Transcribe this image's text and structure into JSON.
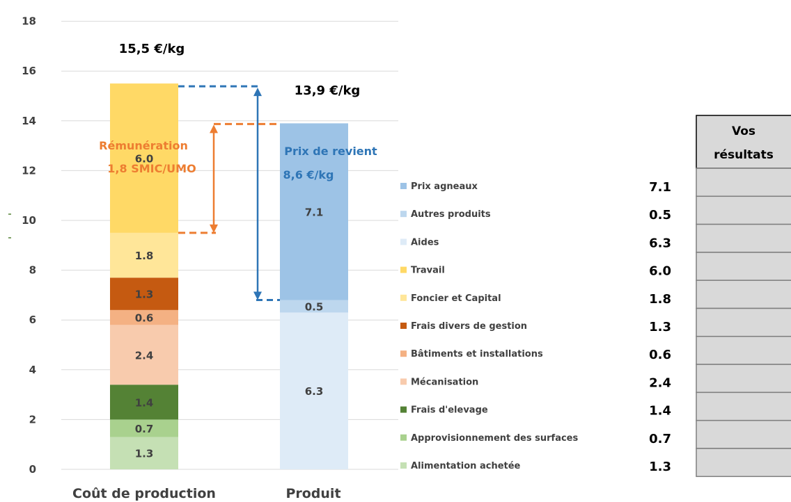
{
  "chart_data": {
    "type": "bar",
    "stacked": true,
    "categories": [
      "Coût de production",
      "Produit"
    ],
    "ylim": [
      0,
      18
    ],
    "yticks": [
      0,
      2,
      4,
      6,
      8,
      10,
      12,
      14,
      16,
      18
    ],
    "grid": true,
    "legend_position": "right",
    "series": [
      {
        "name": "Alimentation achetée",
        "bar": 0,
        "value": 1.3,
        "color": "#c5e0b4"
      },
      {
        "name": "Approvisionnement des surfaces",
        "bar": 0,
        "value": 0.7,
        "color": "#a9d18e"
      },
      {
        "name": "Frais d'elevage",
        "bar": 0,
        "value": 1.4,
        "color": "#548235"
      },
      {
        "name": "Mécanisation",
        "bar": 0,
        "value": 2.4,
        "color": "#f8cbad"
      },
      {
        "name": "Bâtiments et installations",
        "bar": 0,
        "value": 0.6,
        "color": "#f4b183"
      },
      {
        "name": "Frais divers de gestion",
        "bar": 0,
        "value": 1.3,
        "color": "#c55a11"
      },
      {
        "name": "Foncier et Capital",
        "bar": 0,
        "value": 1.8,
        "color": "#ffe699"
      },
      {
        "name": "Travail",
        "bar": 0,
        "value": 6.0,
        "color": "#ffd966"
      },
      {
        "name": "Aides",
        "bar": 1,
        "value": 6.3,
        "color": "#deebf7"
      },
      {
        "name": "Autres produits",
        "bar": 1,
        "value": 0.5,
        "color": "#bdd7ee"
      },
      {
        "name": "Prix agneaux",
        "bar": 1,
        "value": 7.1,
        "color": "#9dc3e6"
      }
    ],
    "totals": [
      "15,5 €/kg",
      "13,9 €/kg"
    ],
    "annotations": {
      "remuneration": {
        "line1": "Rémunération",
        "line2": "1,8 SMIC/UMO",
        "color": "#ed7d31"
      },
      "prix_revient": {
        "line1": "Prix de revient",
        "line2": "8,6 €/kg",
        "color": "#2e75b6"
      }
    },
    "legend": [
      {
        "name": "Prix agneaux",
        "color": "#9dc3e6",
        "value": "7.1"
      },
      {
        "name": "Autres produits",
        "color": "#bdd7ee",
        "value": "0.5"
      },
      {
        "name": "Aides",
        "color": "#deebf7",
        "value": "6.3"
      },
      {
        "name": "Travail",
        "color": "#ffd966",
        "value": "6.0"
      },
      {
        "name": "Foncier et Capital",
        "color": "#ffe699",
        "value": "1.8"
      },
      {
        "name": "Frais divers de gestion",
        "color": "#c55a11",
        "value": "1.3"
      },
      {
        "name": "Bâtiments et installations",
        "color": "#f4b183",
        "value": "0.6"
      },
      {
        "name": "Mécanisation",
        "color": "#f8cbad",
        "value": "2.4"
      },
      {
        "name": "Frais d'elevage",
        "color": "#548235",
        "value": "1.4"
      },
      {
        "name": "Approvisionnement des surfaces",
        "color": "#a9d18e",
        "value": "0.7"
      },
      {
        "name": "Alimentation achetée",
        "color": "#c5e0b4",
        "value": "1.3"
      }
    ],
    "results_table": {
      "header_line1": "Vos",
      "header_line2": "résultats",
      "fill": "#d9d9d9"
    }
  }
}
